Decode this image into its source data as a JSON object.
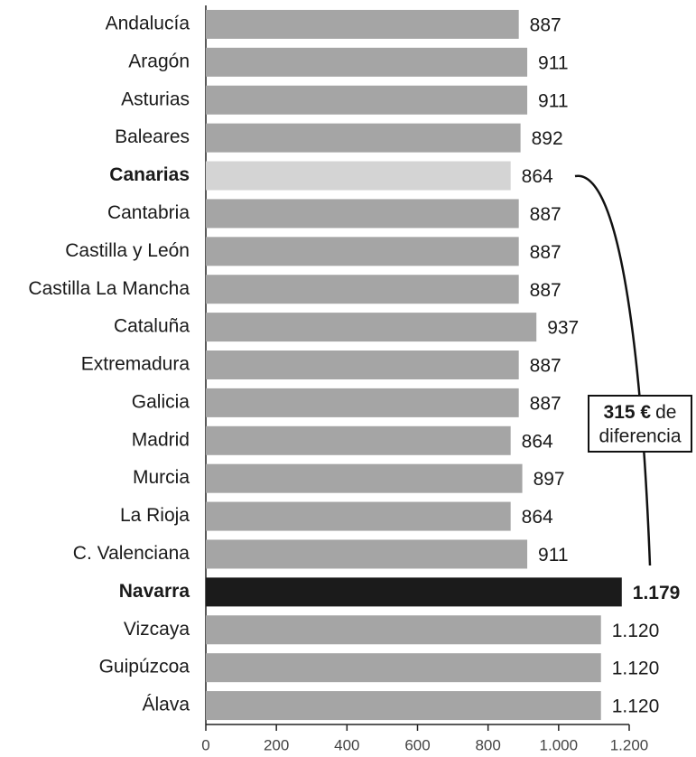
{
  "chart_data": {
    "type": "bar",
    "orientation": "horizontal",
    "categories": [
      "Andalucía",
      "Aragón",
      "Asturias",
      "Baleares",
      "Canarias",
      "Cantabria",
      "Castilla y León",
      "Castilla La Mancha",
      "Cataluña",
      "Extremadura",
      "Galicia",
      "Madrid",
      "Murcia",
      "La Rioja",
      "C. Valenciana",
      "Navarra",
      "Vizcaya",
      "Guipúzcoa",
      "Álava"
    ],
    "values": [
      887,
      911,
      911,
      892,
      864,
      887,
      887,
      887,
      937,
      887,
      887,
      864,
      897,
      864,
      911,
      1179,
      1120,
      1120,
      1120
    ],
    "value_labels": [
      "887",
      "911",
      "911",
      "892",
      "864",
      "887",
      "887",
      "887",
      "937",
      "887",
      "887",
      "864",
      "897",
      "864",
      "911",
      "1.179",
      "1.120",
      "1.120",
      "1.120"
    ],
    "colors": [
      "#a5a5a5",
      "#a5a5a5",
      "#a5a5a5",
      "#a5a5a5",
      "#d4d4d4",
      "#a5a5a5",
      "#a5a5a5",
      "#a5a5a5",
      "#a5a5a5",
      "#a5a5a5",
      "#a5a5a5",
      "#a5a5a5",
      "#a5a5a5",
      "#a5a5a5",
      "#a5a5a5",
      "#1b1b1b",
      "#a5a5a5",
      "#a5a5a5",
      "#a5a5a5"
    ],
    "bold": [
      false,
      false,
      false,
      false,
      true,
      false,
      false,
      false,
      false,
      false,
      false,
      false,
      false,
      false,
      false,
      true,
      false,
      false,
      false
    ],
    "xlim": [
      0,
      1200
    ],
    "xticks": [
      0,
      200,
      400,
      600,
      800,
      {
        "value": 1000,
        "label": "1.000"
      },
      {
        "value": 1200,
        "label": "1.200"
      }
    ],
    "annotation": {
      "highlight": "315 €",
      "line1": "de",
      "line2": "diferencia"
    }
  }
}
